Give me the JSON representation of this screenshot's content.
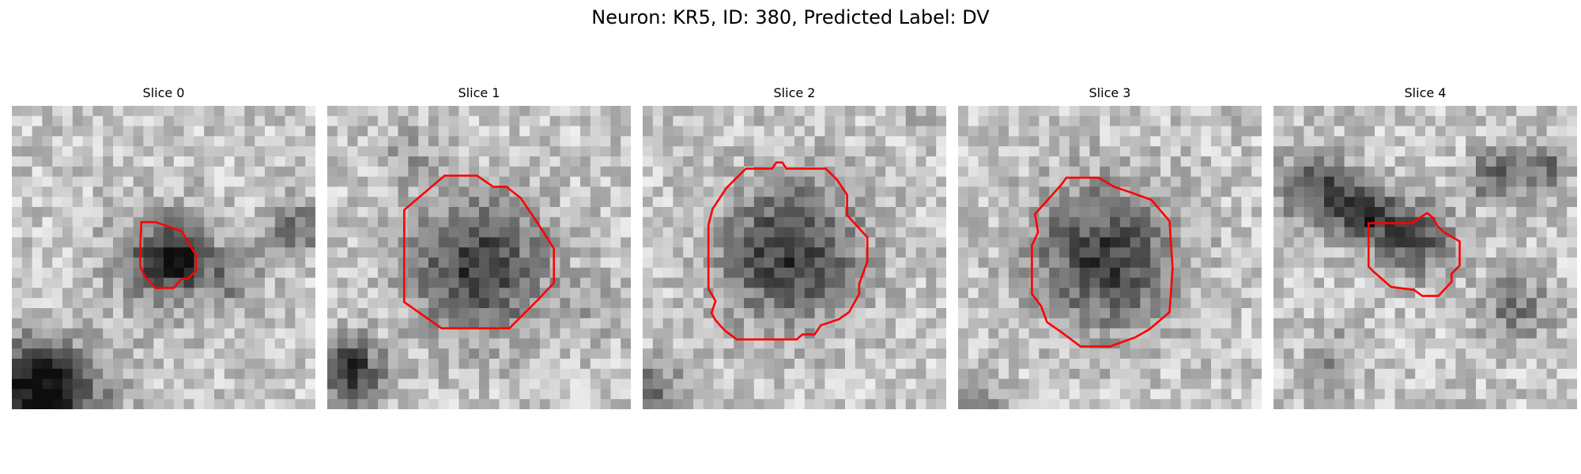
{
  "figure": {
    "title": "Neuron: KR5, ID: 380, Predicted Label: DV"
  },
  "colors": {
    "contour": "#ff0000",
    "background": "#ffffff"
  },
  "panels": [
    {
      "title": "Slice 0"
    },
    {
      "title": "Slice 1"
    },
    {
      "title": "Slice 2"
    },
    {
      "title": "Slice 3"
    },
    {
      "title": "Slice 4"
    }
  ]
}
